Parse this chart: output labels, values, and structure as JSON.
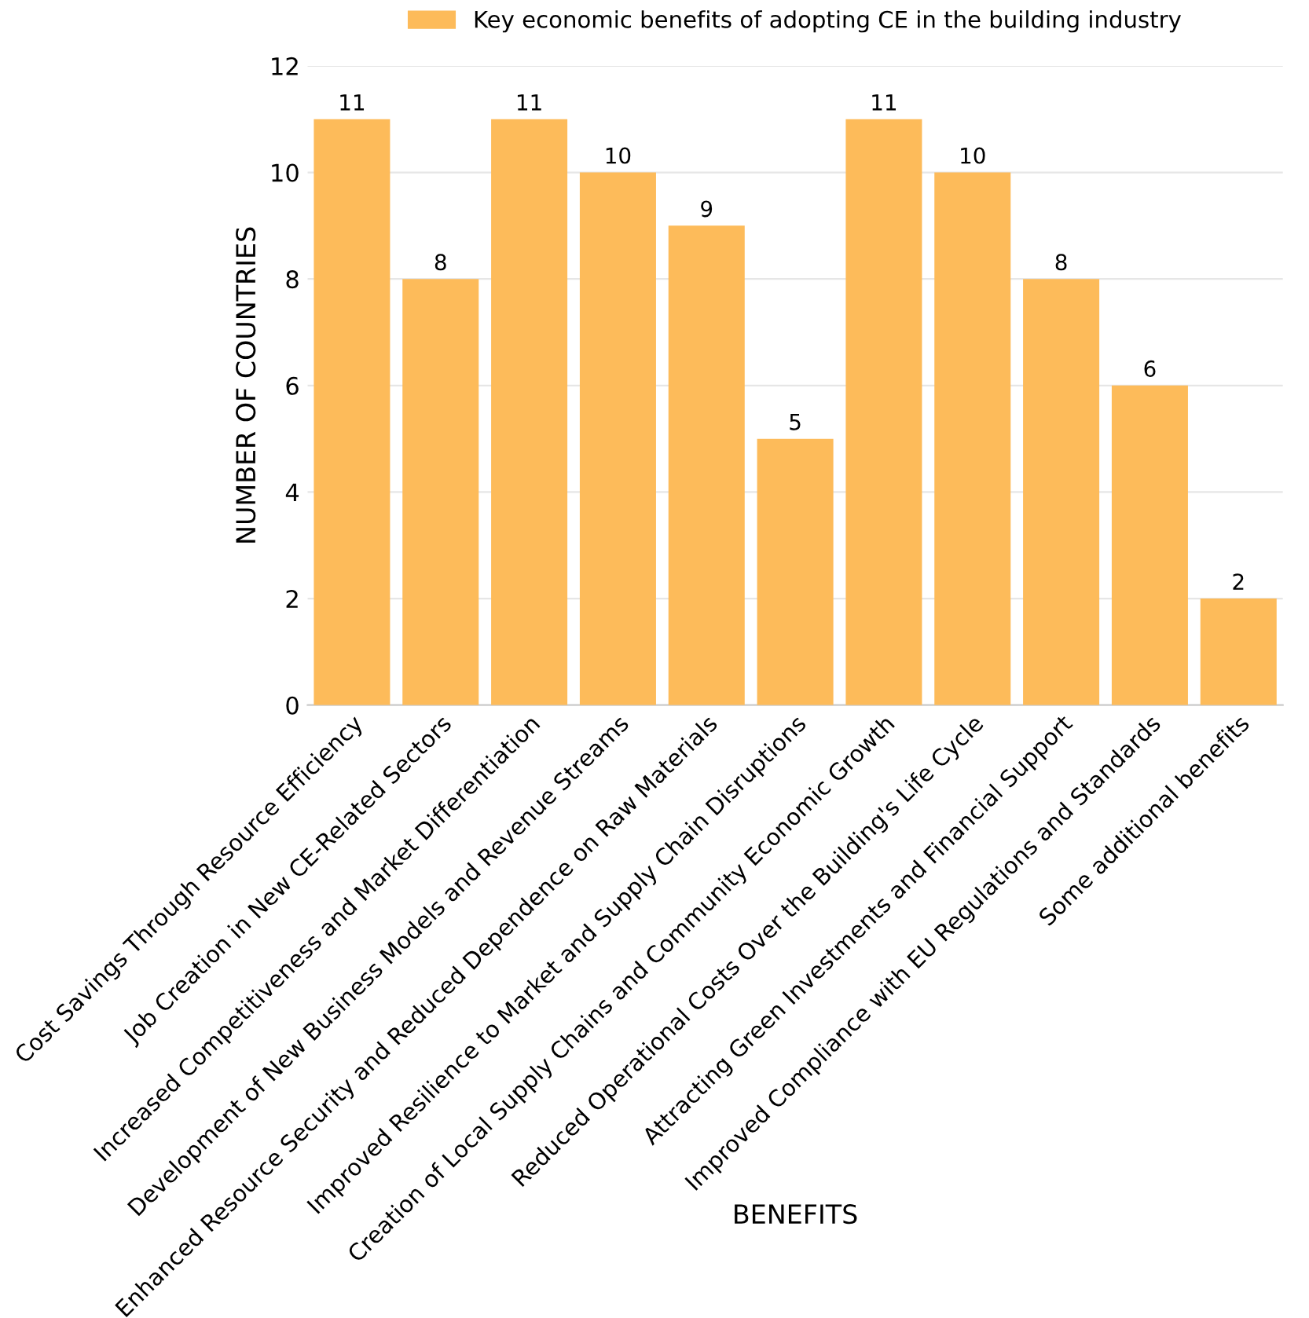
{
  "chart_data": {
    "type": "bar",
    "xlabel": "BENEFITS",
    "ylabel": "NUMBER OF COUNTRIES",
    "categories": [
      "Cost Savings Through Resource Efficiency",
      "Job Creation in New CE-Related Sectors",
      "Increased Competitiveness and Market Differentiation",
      "Development of New Business Models and Revenue Streams",
      "Enhanced Resource Security and Reduced Dependence on Raw Materials",
      "Improved Resilience to Market and Supply Chain Disruptions",
      "Creation of Local Supply Chains and Community Economic Growth",
      "Reduced Operational Costs Over the Building's Life Cycle",
      "Attracting Green Investments and Financial Support",
      "Improved Compliance with EU Regulations and Standards",
      "Some additional benefits"
    ],
    "series": [
      {
        "name": "Key economic benefits of adopting CE in the building industry",
        "color": "#fdbb5a",
        "values": [
          11,
          8,
          11,
          10,
          9,
          5,
          11,
          10,
          8,
          6,
          2
        ]
      }
    ],
    "ylim": [
      0,
      12
    ],
    "yticks": [
      0,
      2,
      4,
      6,
      8,
      10,
      12
    ],
    "grid": "y",
    "legend": "top",
    "data_labels": true
  }
}
